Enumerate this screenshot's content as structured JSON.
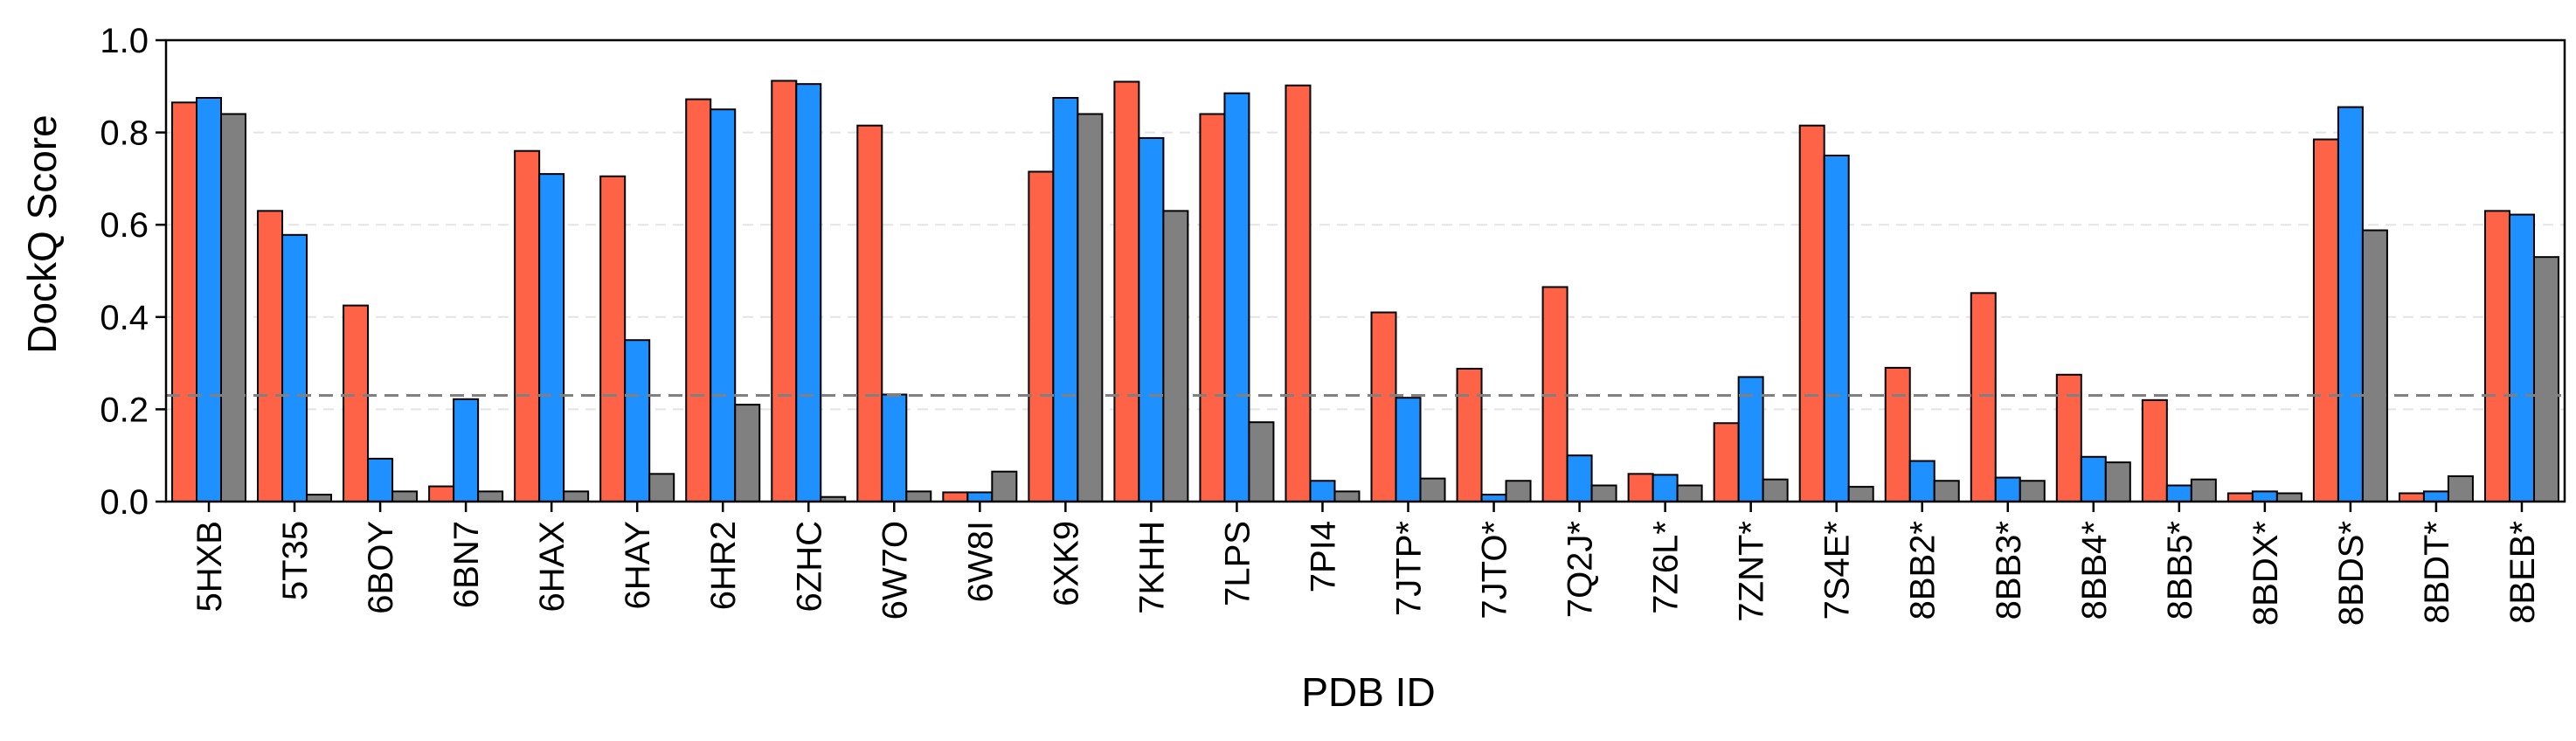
{
  "chart_data": {
    "type": "bar",
    "title": "",
    "xlabel": "PDB ID",
    "ylabel": "DockQ Score",
    "ylim": [
      0,
      1.0
    ],
    "yticks": [
      "0.0",
      "0.2",
      "0.4",
      "0.6",
      "0.8",
      "1.0"
    ],
    "threshold": 0.23,
    "grid": "horizontal dashed",
    "legend": "none",
    "categories": [
      "5HXB",
      "5T35",
      "6BOY",
      "6BN7",
      "6HAX",
      "6HAY",
      "6HR2",
      "6ZHC",
      "6W7O",
      "6W8I",
      "6XK9",
      "7KHH",
      "7LPS",
      "7PI4",
      "7JTP*",
      "7JTO*",
      "7Q2J*",
      "7Z6L*",
      "7ZNT*",
      "7S4E*",
      "8BB2*",
      "8BB3*",
      "8BB4*",
      "8BB5*",
      "8BDX*",
      "8BDS*",
      "8BDT*",
      "8BEB*"
    ],
    "series": [
      {
        "color": "#FF6347",
        "values": [
          0.865,
          0.63,
          0.425,
          0.033,
          0.76,
          0.705,
          0.872,
          0.912,
          0.815,
          0.02,
          0.715,
          0.91,
          0.84,
          0.902,
          0.41,
          0.288,
          0.465,
          0.06,
          0.17,
          0.815,
          0.29,
          0.452,
          0.275,
          0.22,
          0.018,
          0.785,
          0.018,
          0.63
        ]
      },
      {
        "color": "#1E90FF",
        "values": [
          0.875,
          0.578,
          0.093,
          0.222,
          0.71,
          0.35,
          0.85,
          0.905,
          0.232,
          0.02,
          0.875,
          0.788,
          0.885,
          0.045,
          0.225,
          0.015,
          0.1,
          0.058,
          0.27,
          0.75,
          0.088,
          0.052,
          0.097,
          0.035,
          0.022,
          0.855,
          0.022,
          0.622
        ]
      },
      {
        "color": "#808080",
        "values": [
          0.84,
          0.015,
          0.022,
          0.022,
          0.022,
          0.06,
          0.21,
          0.01,
          0.022,
          0.065,
          0.84,
          0.63,
          0.172,
          0.022,
          0.05,
          0.045,
          0.035,
          0.035,
          0.048,
          0.032,
          0.045,
          0.045,
          0.085,
          0.048,
          0.018,
          0.588,
          0.055,
          0.53
        ]
      }
    ]
  }
}
